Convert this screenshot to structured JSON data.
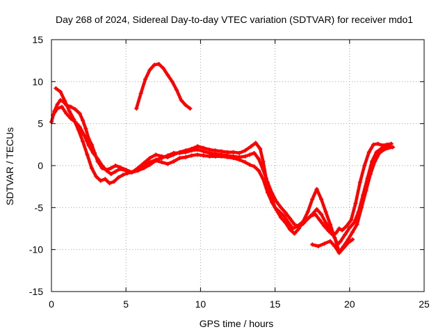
{
  "chart_data": {
    "type": "line",
    "title": "Day 268 of 2024, Sidereal Day-to-day VTEC variation (SDTVAR) for receiver mdo1",
    "xlabel": "GPS time / hours",
    "ylabel": "SDTVAR / TECUs",
    "xlim": [
      0,
      25
    ],
    "ylim": [
      -15,
      15
    ],
    "xticks": [
      0,
      5,
      10,
      15,
      20,
      25
    ],
    "yticks": [
      -15,
      -10,
      -5,
      0,
      5,
      10,
      15
    ],
    "xtick_labels": [
      "0",
      "5",
      "10",
      "15",
      "20",
      "25"
    ],
    "ytick_labels": [
      "-15",
      "-10",
      "-5",
      "0",
      "5",
      "10",
      "15"
    ],
    "grid": true,
    "color": "#ff0000",
    "series": [
      {
        "name": "track-1",
        "x": [
          0.0,
          0.2,
          0.4,
          0.6,
          0.8,
          1.0,
          1.3,
          1.6,
          1.9,
          2.1,
          2.3,
          2.5,
          2.7,
          2.9,
          3.1,
          3.4,
          3.7,
          4.0,
          4.3,
          4.6,
          5.0,
          5.4,
          5.8,
          6.2,
          6.6,
          7.0,
          7.4,
          7.8,
          8.2,
          8.6,
          9.0,
          9.4,
          9.8,
          10.2,
          10.6,
          11.0,
          11.4,
          11.8,
          12.2,
          12.6,
          13.0,
          13.4,
          13.7,
          14.0,
          14.2,
          14.4,
          14.6,
          14.8,
          15.0,
          15.3,
          15.6,
          15.9,
          16.2,
          16.5,
          16.8,
          17.1,
          17.4,
          17.7,
          18.0,
          18.3,
          18.6,
          18.9,
          19.1,
          19.3,
          19.5,
          19.8,
          20.1,
          20.4,
          20.7,
          21.0,
          21.3,
          21.6,
          21.9,
          22.2,
          22.5,
          22.8
        ],
        "y": [
          5.2,
          6.5,
          7.3,
          7.8,
          7.6,
          7.2,
          7.0,
          6.7,
          6.2,
          5.4,
          4.4,
          3.2,
          2.5,
          1.5,
          0.5,
          -0.3,
          -0.5,
          -0.3,
          0.0,
          -0.2,
          -0.5,
          -0.8,
          -0.3,
          0.3,
          0.9,
          1.3,
          1.1,
          1.0,
          1.3,
          1.6,
          1.8,
          2.0,
          2.3,
          2.1,
          1.9,
          1.8,
          1.7,
          1.6,
          1.6,
          1.5,
          1.8,
          2.3,
          2.7,
          2.0,
          0.5,
          -1.5,
          -3.0,
          -4.0,
          -5.0,
          -5.5,
          -6.0,
          -6.8,
          -7.5,
          -7.2,
          -6.8,
          -6.5,
          -6.0,
          -5.8,
          -6.5,
          -7.2,
          -7.8,
          -8.3,
          -8.0,
          -7.5,
          -7.7,
          -7.2,
          -6.5,
          -4.5,
          -2.0,
          0.0,
          1.6,
          2.5,
          2.6,
          2.4,
          2.5,
          2.6
        ]
      },
      {
        "name": "track-2",
        "x": [
          0.1,
          0.4,
          0.7,
          1.0,
          1.3,
          1.6,
          1.9,
          2.2,
          2.5,
          2.8,
          3.1,
          3.4,
          3.7,
          4.0,
          4.3,
          4.6,
          5.0,
          5.4,
          5.8,
          6.2,
          6.6,
          7.0,
          7.4,
          7.8,
          8.2,
          8.6,
          9.0,
          9.4,
          9.8,
          10.2,
          10.6,
          11.0,
          11.4,
          11.8,
          12.2,
          12.6,
          13.0,
          13.3,
          13.6,
          13.9,
          14.2,
          14.5,
          14.8,
          15.1,
          15.4,
          15.7,
          16.0,
          16.3,
          16.6,
          16.9,
          17.2,
          17.5,
          17.8,
          18.1,
          18.4,
          18.7,
          19.0,
          19.2,
          19.4,
          19.7,
          20.0,
          20.3,
          20.6,
          20.9,
          21.2,
          21.5,
          21.8,
          22.1,
          22.4,
          22.7
        ],
        "y": [
          6.0,
          6.8,
          7.0,
          6.2,
          5.6,
          5.2,
          4.6,
          3.6,
          2.4,
          1.5,
          0.8,
          0.0,
          -0.6,
          -1.0,
          -0.7,
          -0.4,
          -0.6,
          -0.8,
          -0.5,
          0.0,
          0.4,
          0.7,
          0.9,
          1.2,
          1.5,
          1.5,
          1.6,
          1.8,
          1.9,
          1.7,
          1.5,
          1.4,
          1.3,
          1.2,
          1.1,
          1.0,
          1.1,
          1.3,
          1.5,
          0.8,
          -0.5,
          -2.0,
          -3.3,
          -4.3,
          -5.0,
          -5.6,
          -6.3,
          -7.0,
          -7.3,
          -6.9,
          -6.3,
          -5.8,
          -5.2,
          -5.8,
          -6.8,
          -7.6,
          -8.6,
          -9.4,
          -9.0,
          -8.2,
          -7.4,
          -6.8,
          -5.5,
          -3.5,
          -1.5,
          0.5,
          1.6,
          2.0,
          2.2,
          2.3
        ]
      },
      {
        "name": "track-3",
        "x": [
          0.3,
          0.6,
          0.9,
          1.2,
          1.5,
          1.8,
          2.1,
          2.4,
          2.7,
          3.0,
          3.3,
          3.6,
          3.9,
          4.2,
          4.5,
          4.8,
          5.1,
          5.4,
          5.8,
          6.2,
          6.6,
          7.0,
          7.4,
          7.8,
          8.2,
          8.6,
          9.0,
          9.4,
          9.8,
          10.2,
          10.6,
          11.0,
          11.4,
          11.8,
          12.2,
          12.6,
          13.0,
          13.3,
          13.6,
          13.9,
          14.2,
          14.5,
          14.8,
          15.1,
          15.4,
          15.7,
          16.0,
          16.3,
          16.6,
          16.9,
          17.2,
          17.5,
          17.8,
          18.1,
          18.4,
          18.7,
          19.0,
          19.3,
          19.6,
          19.9,
          20.2,
          20.5,
          20.8,
          21.1,
          21.4,
          21.7,
          22.0,
          22.3,
          22.6,
          22.9
        ],
        "y": [
          9.2,
          8.8,
          7.7,
          6.5,
          5.5,
          4.3,
          2.9,
          1.3,
          -0.3,
          -1.3,
          -1.8,
          -1.6,
          -2.1,
          -1.9,
          -1.4,
          -1.1,
          -0.9,
          -0.8,
          -0.6,
          -0.3,
          0.1,
          0.6,
          0.4,
          0.2,
          0.5,
          0.9,
          1.0,
          1.2,
          1.3,
          1.2,
          1.1,
          1.1,
          1.1,
          1.0,
          0.9,
          0.7,
          0.4,
          0.1,
          -0.1,
          -0.6,
          -1.6,
          -3.2,
          -4.4,
          -5.3,
          -6.2,
          -6.8,
          -7.6,
          -8.1,
          -7.5,
          -6.6,
          -5.5,
          -4.0,
          -2.8,
          -4.0,
          -5.5,
          -7.0,
          -8.6,
          -10.3,
          -9.6,
          -8.8,
          -7.9,
          -7.0,
          -5.0,
          -3.0,
          -1.0,
          0.5,
          1.5,
          1.9,
          2.1,
          2.2
        ]
      },
      {
        "name": "track-4",
        "x": [
          5.7,
          6.0,
          6.3,
          6.6,
          6.9,
          7.2,
          7.5,
          7.8,
          8.1,
          8.4,
          8.7,
          9.0,
          9.3
        ],
        "y": [
          6.8,
          8.6,
          10.3,
          11.4,
          12.0,
          12.1,
          11.6,
          10.8,
          10.0,
          9.0,
          7.8,
          7.2,
          6.8
        ]
      },
      {
        "name": "track-5",
        "x": [
          17.5,
          17.9,
          18.3,
          18.7,
          19.0,
          19.3,
          19.6,
          19.9,
          20.2
        ],
        "y": [
          -9.4,
          -9.6,
          -9.3,
          -9.0,
          -9.6,
          -10.4,
          -9.8,
          -9.2,
          -8.8
        ]
      }
    ]
  }
}
